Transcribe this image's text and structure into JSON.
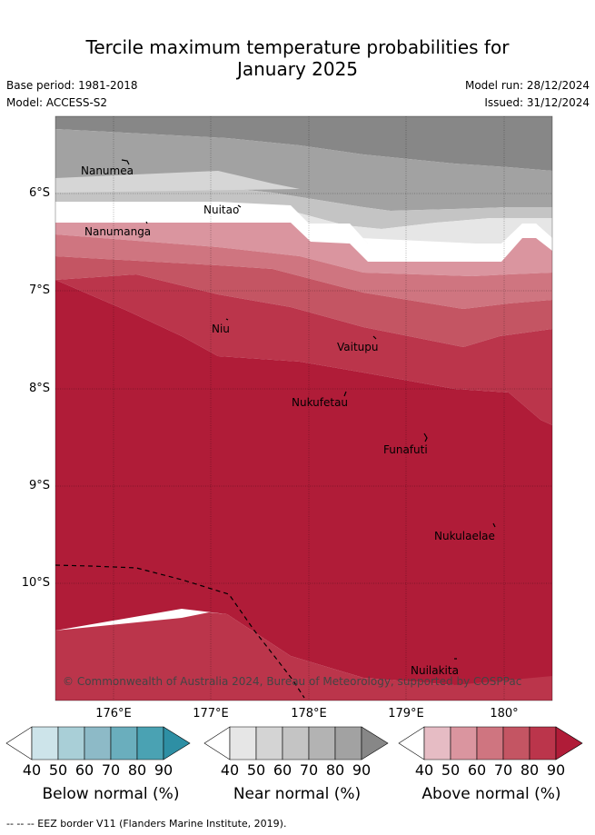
{
  "title_line1": "Tercile maximum temperature probabilities for",
  "title_line2": "January 2025",
  "base_period": "Base period: 1981-2018",
  "model": "Model: ACCESS-S2",
  "model_run": "Model run: 28/12/2024",
  "issued": "Issued: 31/12/2024",
  "map": {
    "lon_labels": [
      "176°E",
      "177°E",
      "178°E",
      "179°E",
      "180°"
    ],
    "lat_labels": [
      "6°S",
      "7°S",
      "8°S",
      "9°S",
      "10°S"
    ],
    "places": [
      "Nanumea",
      "Nuitao",
      "Nanumanga",
      "Niu",
      "Vaitupu",
      "Nukufetau",
      "Funafuti",
      "Nukulaelae",
      "Nuilakita"
    ],
    "copyright": "© Commonwealth of Australia 2024, Bureau of Meteorology, supported by COSPPac"
  },
  "colorbars": [
    {
      "title": "Below normal (%)",
      "ticks": [
        "40",
        "50",
        "60",
        "70",
        "80",
        "90"
      ],
      "colors": [
        "#ffffff",
        "#cde4ea",
        "#a9cfd7",
        "#8dbac7",
        "#6aaebd",
        "#4aa2b3",
        "#2e8fa4"
      ]
    },
    {
      "title": "Near normal (%)",
      "ticks": [
        "40",
        "50",
        "60",
        "70",
        "80",
        "90"
      ],
      "colors": [
        "#ffffff",
        "#e6e6e6",
        "#d4d4d4",
        "#c4c4c4",
        "#b3b3b3",
        "#a2a2a2",
        "#878787"
      ]
    },
    {
      "title": "Above normal (%)",
      "ticks": [
        "40",
        "50",
        "60",
        "70",
        "80",
        "90"
      ],
      "colors": [
        "#ffffff",
        "#e6bcc4",
        "#da959f",
        "#cf7580",
        "#c45563",
        "#bb354b",
        "#b01c38"
      ]
    }
  ],
  "footer": "--  --  -- EEZ border V11 (Flanders Marine Institute, 2019)."
}
